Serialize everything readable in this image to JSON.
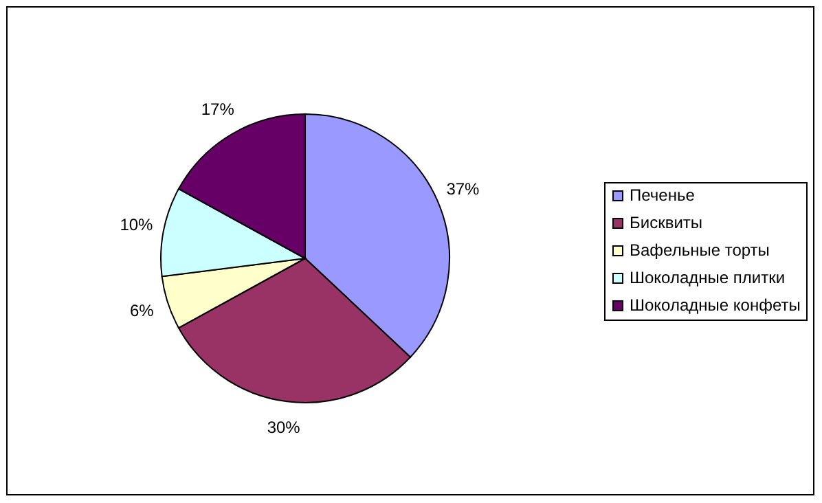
{
  "chart_data": {
    "type": "pie",
    "categories": [
      "Печенье",
      "Бисквиты",
      "Вафельные торты",
      "Шоколадные плитки",
      "Шоколадные конфеты"
    ],
    "values": [
      37,
      30,
      6,
      10,
      17
    ],
    "colors": [
      "#9999ff",
      "#993366",
      "#ffffcc",
      "#ccffff",
      "#660066"
    ],
    "value_labels": [
      "37%",
      "30%",
      "6%",
      "10%",
      "17%"
    ],
    "legend": "right"
  }
}
